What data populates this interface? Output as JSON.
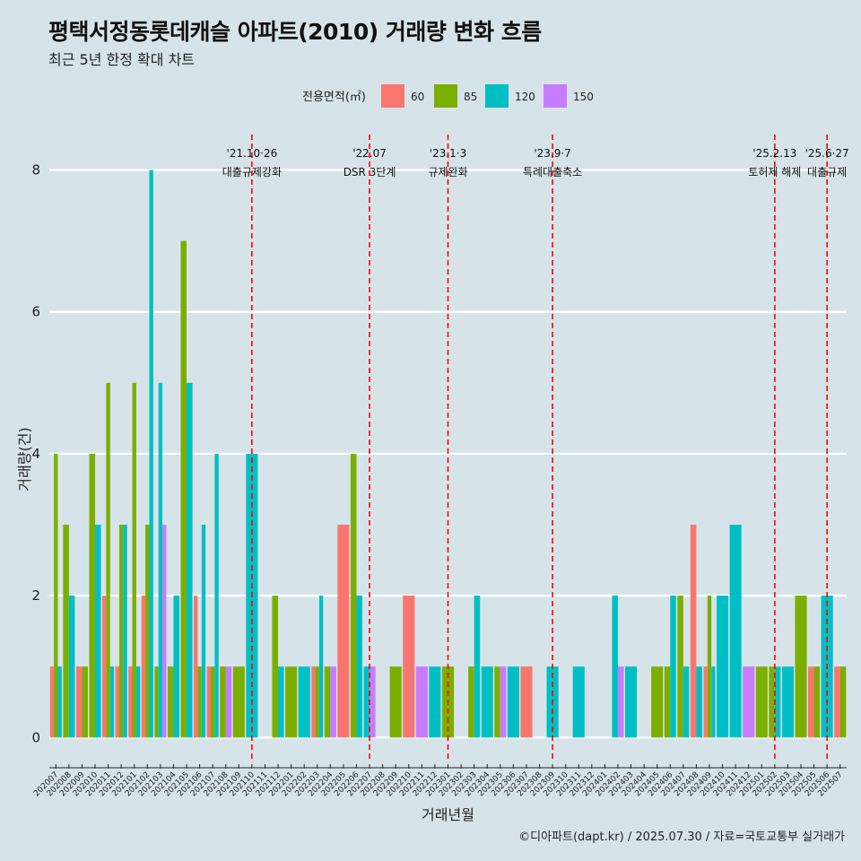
{
  "title": "평택서정동롯데캐슬 아파트(2010) 거래량 변화 흐름",
  "subtitle": "최근 5년 한정 확대 차트",
  "caption": "©디아파트(dapt.kr) / 2025.07.30 / 자료=국토교통부 실거래가",
  "colors": {
    "background": "#d6e4ea",
    "s60": "#F8766D",
    "s85": "#7CAE00",
    "s120": "#00BFC4",
    "s150": "#C77CFF",
    "event_line": "#ff0000"
  },
  "chart_data": {
    "type": "bar",
    "xlabel": "거래년월",
    "ylabel": "거래량(건)",
    "ylim": [
      -0.35,
      8.5
    ],
    "yticks": [
      0,
      2,
      4,
      6,
      8
    ],
    "legend": {
      "title": "전용면적(㎡)",
      "position": "top",
      "entries": [
        "60",
        "85",
        "120",
        "150"
      ]
    },
    "categories": [
      "202007",
      "202008",
      "202009",
      "202010",
      "202011",
      "202012",
      "202101",
      "202102",
      "202103",
      "202104",
      "202105",
      "202106",
      "202107",
      "202108",
      "202109",
      "202110",
      "202111",
      "202112",
      "202201",
      "202202",
      "202203",
      "202204",
      "202205",
      "202206",
      "202207",
      "202208",
      "202209",
      "202210",
      "202211",
      "202212",
      "202301",
      "202302",
      "202303",
      "202304",
      "202305",
      "202306",
      "202307",
      "202308",
      "202309",
      "202310",
      "202311",
      "202312",
      "202401",
      "202402",
      "202403",
      "202404",
      "202405",
      "202406",
      "202407",
      "202408",
      "202409",
      "202410",
      "202411",
      "202412",
      "202501",
      "202502",
      "202503",
      "202504",
      "202505",
      "202506",
      "202507"
    ],
    "transactions": [
      {
        "month": "202007",
        "s60": 1,
        "s85": 4,
        "s120": 1
      },
      {
        "month": "202008",
        "s85": 3,
        "s120": 2
      },
      {
        "month": "202009",
        "s60": 1,
        "s85": 1
      },
      {
        "month": "202010",
        "s85": 4,
        "s120": 3
      },
      {
        "month": "202011",
        "s60": 2,
        "s85": 5,
        "s120": 1
      },
      {
        "month": "202012",
        "s60": 1,
        "s85": 3,
        "s120": 3
      },
      {
        "month": "202101",
        "s60": 1,
        "s85": 5,
        "s120": 1
      },
      {
        "month": "202102",
        "s60": 2,
        "s85": 3,
        "s120": 8
      },
      {
        "month": "202103",
        "s85": 1,
        "s120": 5,
        "s150": 3
      },
      {
        "month": "202104",
        "s85": 1,
        "s120": 2
      },
      {
        "month": "202105",
        "s85": 7,
        "s120": 5
      },
      {
        "month": "202106",
        "s60": 2,
        "s85": 1,
        "s120": 3
      },
      {
        "month": "202107",
        "s60": 1,
        "s85": 1,
        "s120": 4
      },
      {
        "month": "202108",
        "s85": 1,
        "s150": 1
      },
      {
        "month": "202109",
        "s85": 1
      },
      {
        "month": "202110",
        "s120": 4
      },
      {
        "month": "202112",
        "s85": 2,
        "s120": 1
      },
      {
        "month": "202201",
        "s85": 1
      },
      {
        "month": "202202",
        "s120": 1
      },
      {
        "month": "202203",
        "s60": 1,
        "s85": 1,
        "s120": 2
      },
      {
        "month": "202204",
        "s85": 1,
        "s150": 1
      },
      {
        "month": "202205",
        "s60": 3
      },
      {
        "month": "202206",
        "s85": 4,
        "s120": 2
      },
      {
        "month": "202207",
        "s120": 1,
        "s150": 1
      },
      {
        "month": "202209",
        "s85": 1
      },
      {
        "month": "202210",
        "s60": 2
      },
      {
        "month": "202211",
        "s150": 1
      },
      {
        "month": "202212",
        "s120": 1
      },
      {
        "month": "202301",
        "s85": 1
      },
      {
        "month": "202303",
        "s85": 1,
        "s120": 2
      },
      {
        "month": "202304",
        "s120": 1
      },
      {
        "month": "202305",
        "s85": 1,
        "s150": 1
      },
      {
        "month": "202306",
        "s120": 1
      },
      {
        "month": "202307",
        "s60": 1
      },
      {
        "month": "202309",
        "s120": 1
      },
      {
        "month": "202311",
        "s120": 1
      },
      {
        "month": "202402",
        "s120": 2,
        "s150": 1
      },
      {
        "month": "202403",
        "s120": 1
      },
      {
        "month": "202405",
        "s85": 1
      },
      {
        "month": "202406",
        "s85": 1,
        "s120": 2
      },
      {
        "month": "202407",
        "s85": 2,
        "s120": 1
      },
      {
        "month": "202408",
        "s60": 3,
        "s120": 1
      },
      {
        "month": "202409",
        "s60": 1,
        "s85": 2,
        "s120": 1
      },
      {
        "month": "202410",
        "s120": 2
      },
      {
        "month": "202411",
        "s120": 3
      },
      {
        "month": "202412",
        "s150": 1
      },
      {
        "month": "202501",
        "s85": 1
      },
      {
        "month": "202502",
        "s85": 1,
        "s120": 1
      },
      {
        "month": "202503",
        "s120": 1
      },
      {
        "month": "202504",
        "s85": 2
      },
      {
        "month": "202505",
        "s60": 1,
        "s85": 1
      },
      {
        "month": "202506",
        "s120": 2
      },
      {
        "month": "202507",
        "s60": 1,
        "s85": 1
      }
    ],
    "events": [
      {
        "month": "202110",
        "date": "'21.10·26",
        "label": "대출규제강화"
      },
      {
        "month": "202207",
        "date": "'22.07",
        "label": "DSR 3단계"
      },
      {
        "month": "202301",
        "date": "'23.1·3",
        "label": "규제완화"
      },
      {
        "month": "202309",
        "date": "'23.9·7",
        "label": "특례대출축소"
      },
      {
        "month": "202502",
        "date": "'25.2.13",
        "label": "토허제 해제"
      },
      {
        "month": "202506",
        "date": "'25.6·27",
        "label": "대출규제"
      }
    ]
  }
}
